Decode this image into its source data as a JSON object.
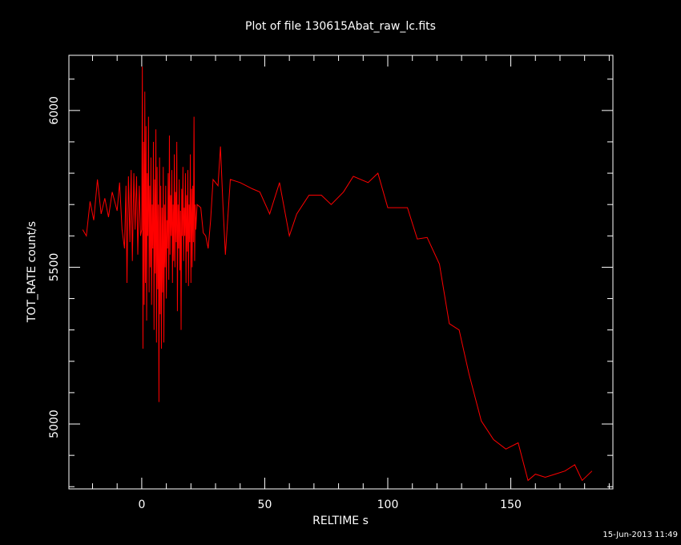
{
  "chart_data": {
    "type": "line",
    "title": "Plot of file 130615Abat_raw_lc.fits",
    "x_label": "RELTIME  s",
    "y_label": "TOT_RATE  count/s",
    "timestamp": "15-Jun-2013 11:49",
    "x": [
      -24,
      -22.5,
      -21,
      -19.5,
      -18,
      -16.5,
      -15,
      -13.5,
      -12,
      -10,
      -9,
      -8,
      -7,
      -6.4,
      -6,
      -5.4,
      -4.8,
      -4.3,
      -3.8,
      -3.2,
      -2.7,
      -2.1,
      -1.6,
      -1,
      -0.5,
      0,
      0.25,
      0.5,
      0.75,
      1,
      1.25,
      1.5,
      1.75,
      2,
      2.25,
      2.5,
      2.75,
      3,
      3.25,
      3.5,
      3.75,
      4,
      4.25,
      4.5,
      4.75,
      5,
      5.25,
      5.5,
      5.75,
      6,
      6.25,
      6.5,
      6.75,
      7,
      7.25,
      7.5,
      7.75,
      8,
      8.25,
      8.5,
      8.75,
      9,
      9.25,
      9.5,
      9.75,
      10,
      10.25,
      10.5,
      10.75,
      11,
      11.25,
      11.5,
      11.75,
      12,
      12.25,
      12.5,
      12.75,
      13,
      13.25,
      13.5,
      13.75,
      14,
      14.25,
      14.5,
      14.75,
      15,
      15.25,
      15.5,
      15.75,
      16,
      16.25,
      16.5,
      16.75,
      17,
      17.25,
      17.5,
      17.75,
      18,
      18.25,
      18.5,
      18.75,
      19,
      19.25,
      19.5,
      19.75,
      20,
      20.25,
      20.5,
      20.75,
      21,
      21.25,
      21.5,
      21.75,
      22,
      22.5,
      24,
      25,
      26,
      27,
      28,
      29,
      31,
      32,
      33,
      34,
      36,
      40,
      45,
      48,
      52,
      56,
      60,
      63,
      68,
      73,
      77,
      82,
      86,
      92,
      96,
      100,
      104,
      108,
      112,
      116,
      121,
      125,
      129,
      133,
      138,
      143,
      148,
      153,
      157,
      160,
      164,
      168,
      172,
      176,
      179,
      183
    ],
    "series": [
      {
        "name": "TOT_RATE",
        "color": "#ff0000",
        "values": [
          5620,
          5600,
          5710,
          5650,
          5780,
          5670,
          5720,
          5660,
          5740,
          5680,
          5770,
          5620,
          5560,
          5760,
          5450,
          5790,
          5580,
          5810,
          5520,
          5800,
          5620,
          5790,
          5540,
          5760,
          5600,
          5620,
          6140,
          5240,
          5900,
          5380,
          6060,
          5450,
          5950,
          5330,
          5800,
          5600,
          5980,
          5420,
          5760,
          5500,
          5850,
          5380,
          5700,
          5560,
          5900,
          5300,
          5780,
          5480,
          5940,
          5260,
          5820,
          5430,
          5700,
          5070,
          5850,
          5350,
          5760,
          5240,
          5690,
          5420,
          5820,
          5260,
          5700,
          5500,
          5760,
          5400,
          5650,
          5560,
          5800,
          5460,
          5920,
          5540,
          5730,
          5600,
          5810,
          5450,
          5700,
          5520,
          5860,
          5500,
          5740,
          5580,
          5900,
          5360,
          5700,
          5560,
          5780,
          5490,
          5680,
          5300,
          5750,
          5600,
          5820,
          5520,
          5690,
          5600,
          5800,
          5450,
          5730,
          5550,
          5810,
          5440,
          5700,
          5580,
          5860,
          5450,
          5750,
          5500,
          5760,
          5580,
          5980,
          5520,
          5700,
          5620,
          5700,
          5690,
          5610,
          5600,
          5560,
          5650,
          5780,
          5760,
          5885,
          5700,
          5540,
          5780,
          5770,
          5750,
          5740,
          5670,
          5770,
          5600,
          5670,
          5730,
          5730,
          5700,
          5740,
          5790,
          5770,
          5800,
          5690,
          5690,
          5690,
          5590,
          5595,
          5510,
          5320,
          5300,
          5160,
          5010,
          4950,
          4920,
          4940,
          4820,
          4840,
          4830,
          4840,
          4850,
          4870,
          4820,
          4850
        ]
      }
    ],
    "xlim": [
      -29.6,
      191.5
    ],
    "ylim": [
      4793,
      6176
    ],
    "xticks": [
      0,
      50,
      100,
      150
    ],
    "yticks": [
      5000,
      5500,
      6000
    ],
    "xminorticks": [
      -20,
      -10,
      10,
      20,
      30,
      40,
      60,
      70,
      80,
      90,
      110,
      120,
      130,
      140,
      160,
      170,
      180,
      190
    ],
    "yminorticks": [
      4800,
      4900,
      5100,
      5200,
      5300,
      5400,
      5600,
      5700,
      5800,
      5900,
      6100
    ],
    "background": "#000000",
    "foreground": "#ffffff"
  }
}
